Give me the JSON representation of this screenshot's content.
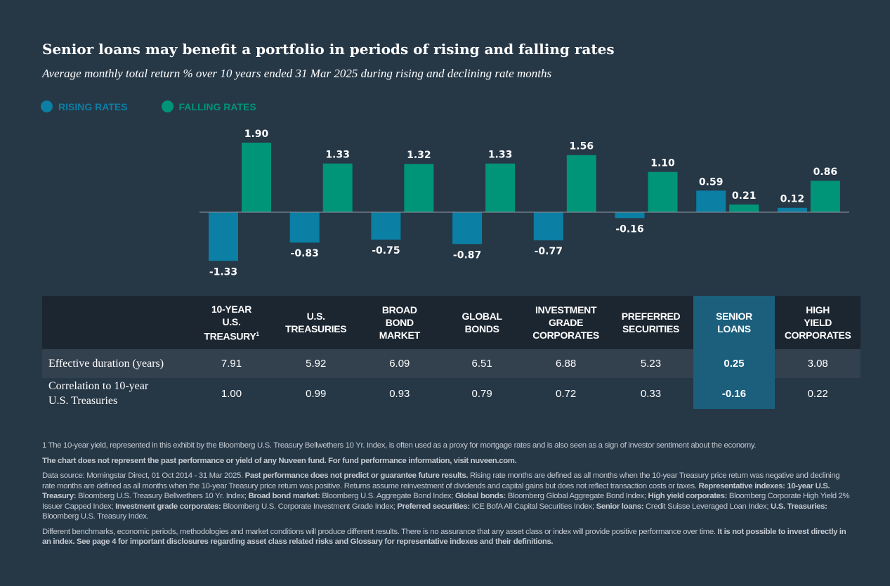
{
  "title": "Senior loans may benefit a portfolio in periods of rising and falling rates",
  "subtitle": "Average monthly total return % over 10 years ended 31 Mar 2025 during rising and declining rate months",
  "colors": {
    "rising": "#0b7fa4",
    "falling": "#009479",
    "highlight": "#1b5f7d"
  },
  "chart_data": {
    "type": "bar",
    "categories": [
      "10-Year U.S. Treasury",
      "U.S. Treasuries",
      "Broad Bond Market",
      "Global Bonds",
      "Investment Grade Corporates",
      "Preferred Securities",
      "Senior Loans",
      "High Yield Corporates"
    ],
    "series": [
      {
        "name": "RISING RATES",
        "values": [
          -1.33,
          -0.83,
          -0.75,
          -0.87,
          -0.77,
          -0.16,
          0.59,
          0.12
        ]
      },
      {
        "name": "FALLING RATES",
        "values": [
          1.9,
          1.33,
          1.32,
          1.33,
          1.56,
          1.1,
          0.21,
          0.86
        ]
      }
    ],
    "legend_position": "top-left",
    "grid": false
  },
  "table": {
    "headers": [
      "10-YEAR U.S. TREASURY",
      "U.S. TREASURIES",
      "BROAD BOND MARKET",
      "GLOBAL BONDS",
      "INVESTMENT GRADE CORPORATES",
      "PREFERRED SECURITIES",
      "SENIOR LOANS",
      "HIGH YIELD CORPORATES"
    ],
    "header_lines": [
      [
        "10-YEAR",
        "U.S.",
        "TREASURY"
      ],
      [
        "U.S.",
        "TREASURIES"
      ],
      [
        "BROAD",
        "BOND",
        "MARKET"
      ],
      [
        "GLOBAL",
        "BONDS"
      ],
      [
        "INVESTMENT",
        "GRADE",
        "CORPORATES"
      ],
      [
        "PREFERRED",
        "SECURITIES"
      ],
      [
        "SENIOR",
        "LOANS"
      ],
      [
        "HIGH",
        "YIELD",
        "CORPORATES"
      ]
    ],
    "footnote_mark": "1",
    "rows": [
      {
        "label": "Effective duration (years)",
        "values": [
          "7.91",
          "5.92",
          "6.09",
          "6.51",
          "6.88",
          "5.23",
          "0.25",
          "3.08"
        ]
      },
      {
        "label": "Correlation to 10-year U.S. Treasuries",
        "values": [
          "1.00",
          "0.99",
          "0.93",
          "0.79",
          "0.72",
          "0.33",
          "-0.16",
          "0.22"
        ]
      }
    ]
  },
  "notes": {
    "n1": "1 The 10-year yield, represented in this exhibit by the Bloomberg U.S. Treasury Bellwethers 10 Yr. Index, is often used as a proxy for mortgage rates and is also seen as a sign of investor sentiment about the economy.",
    "n2": "The chart does not represent the past performance or yield of any Nuveen fund. For fund performance information, visit nuveen.com.",
    "n3a": "Data source: Morningstar Direct, 01 Oct 2014 - 31 Mar 2025. ",
    "n3b": "Past performance does not predict or guarantee future results.",
    "n3c": " Rising rate months are defined as all months when the 10-year Treasury price return was negative and declining rate months are defined as all months when the 10-year Treasury price return was positive. Returns assume reinvestment of dividends and capital gains but does not reflect transaction costs or taxes. ",
    "n3d": "Representative indexes: 10-year U.S. Treasury:",
    "n3e": " Bloomberg U.S. Treasury Bellwethers 10 Yr. Index; ",
    "n3f": "Broad bond market:",
    "n3g": " Bloomberg U.S. Aggregate Bond Index; ",
    "n3h": "Global bonds:",
    "n3i": " Bloomberg Global Aggregate Bond Index; ",
    "n3j": "High yield corporates:",
    "n3k": " Bloomberg Corporate High Yield 2% Issuer Capped Index; ",
    "n3l": "Investment grade corporates:",
    "n3m": " Bloomberg U.S. Corporate Investment Grade Index; ",
    "n3n": "Preferred securities:",
    "n3o": " ICE BofA All Capital Securities Index; ",
    "n3p": "Senior loans:",
    "n3q": " Credit Suisse Leveraged Loan Index; ",
    "n3r": "U.S. Treasuries:",
    "n3s": " Bloomberg U.S. Treasury Index.",
    "n4a": "Different benchmarks, economic periods, methodologies and market conditions will produce different results. There is no assurance that any asset class or index will provide positive performance over time. ",
    "n4b": "It is not possible to invest directly in an index. See page 4 for important disclosures regarding asset class related risks and Glossary for representative indexes and their definitions."
  }
}
